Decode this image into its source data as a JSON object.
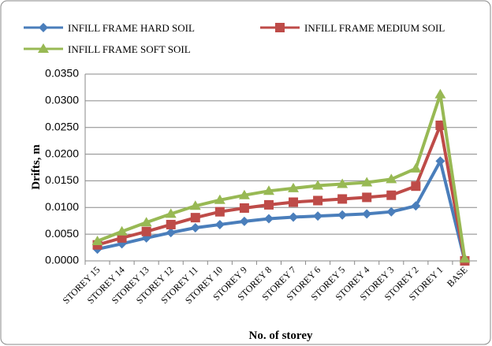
{
  "chart_data": {
    "type": "line",
    "x_label": "No. of storey",
    "y_label": "Drifts, m",
    "categories": [
      "STOREY 15",
      "STOREY 14",
      "STOREY 13",
      "STOREY 12",
      "STOREY 11",
      "STOREY 10",
      "STOREY 9",
      "STOREY 8",
      "STOREY 7",
      "STOREY 6",
      "STOREY 5",
      "STOREY 4",
      "STOREY 3",
      "STOREY 2",
      "STOREY 1",
      "BASE"
    ],
    "series": [
      {
        "name": "INFILL FRAME HARD SOIL",
        "color": "#4a7ebb",
        "marker": "diamond",
        "values": [
          0.0022,
          0.0032,
          0.0043,
          0.0053,
          0.0062,
          0.0068,
          0.0074,
          0.0079,
          0.0082,
          0.0084,
          0.0086,
          0.0088,
          0.0092,
          0.0103,
          0.0187,
          0.0
        ]
      },
      {
        "name": "INFILL FRAME MEDIUM SOIL",
        "color": "#be4b48",
        "marker": "square",
        "values": [
          0.003,
          0.0043,
          0.0055,
          0.0068,
          0.0081,
          0.0092,
          0.0099,
          0.0105,
          0.011,
          0.0113,
          0.0116,
          0.0119,
          0.0123,
          0.014,
          0.0254,
          0.0
        ]
      },
      {
        "name": "INFILL FRAME SOFT SOIL",
        "color": "#98b954",
        "marker": "triangle",
        "values": [
          0.0037,
          0.0055,
          0.0072,
          0.0088,
          0.0103,
          0.0114,
          0.0123,
          0.0131,
          0.0136,
          0.0141,
          0.0144,
          0.0147,
          0.0153,
          0.0173,
          0.0312,
          0.0004
        ]
      }
    ],
    "ylim": [
      0,
      0.035
    ],
    "yticks": [
      {
        "value": 0,
        "label": "0.0000"
      },
      {
        "value": 0.005,
        "label": "0.0050"
      },
      {
        "value": 0.01,
        "label": "0.0100"
      },
      {
        "value": 0.015,
        "label": "0.0150"
      },
      {
        "value": 0.02,
        "label": "0.0200"
      },
      {
        "value": 0.025,
        "label": "0.0250"
      },
      {
        "value": 0.03,
        "label": "0.0300"
      },
      {
        "value": 0.035,
        "label": "0.0350"
      }
    ],
    "grid": true
  }
}
